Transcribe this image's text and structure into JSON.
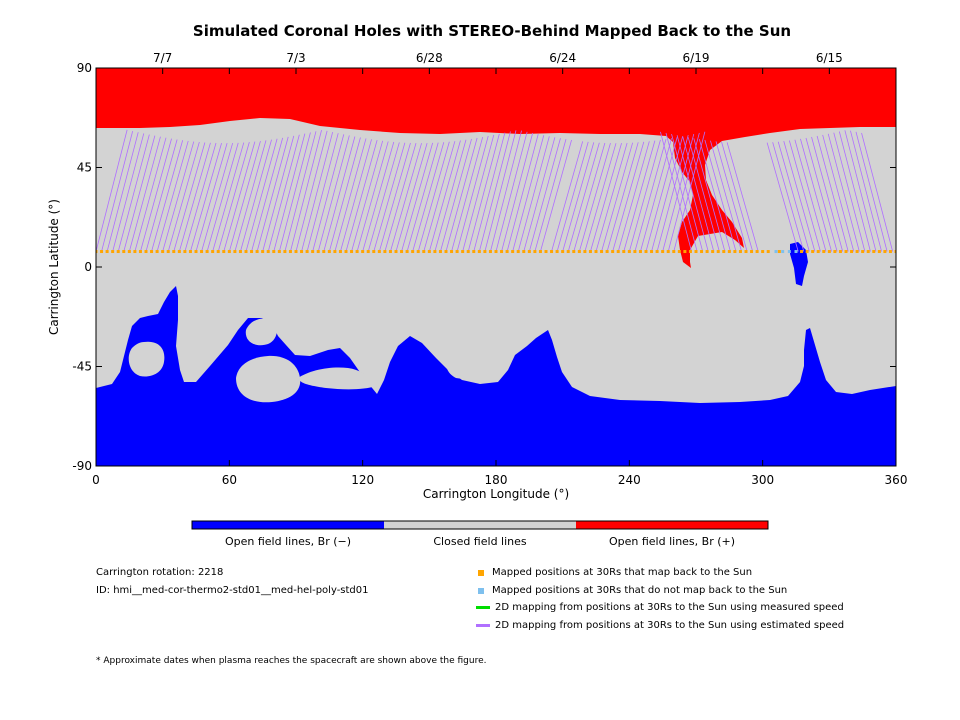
{
  "chart_data": {
    "type": "heatmap",
    "title": "Simulated Coronal Holes with STEREO-Behind Mapped Back to the Sun",
    "xlabel": "Carrington Longitude (°)",
    "ylabel": "Carrington Latitude (°)",
    "xlim": [
      0,
      360
    ],
    "ylim": [
      -90,
      90
    ],
    "x_ticks": [
      0,
      60,
      120,
      180,
      240,
      300,
      360
    ],
    "y_ticks": [
      90,
      45,
      0,
      -45,
      -90
    ],
    "top_axis": {
      "ticks": [
        {
          "lon": 30,
          "label": "7/7"
        },
        {
          "lon": 90,
          "label": "7/3"
        },
        {
          "lon": 150,
          "label": "6/28"
        },
        {
          "lon": 210,
          "label": "6/24"
        },
        {
          "lon": 270,
          "label": "6/19"
        },
        {
          "lon": 330,
          "label": "6/15"
        }
      ]
    },
    "mapped_latitude": 7,
    "mapped_points": {
      "back_to_sun": {
        "lon_start": 0,
        "lon_end": 360,
        "step": 2.5,
        "color": "#ffa500"
      },
      "not_back": [
        306,
        309,
        312,
        315
      ],
      "not_back_color": "#7ec0ee"
    },
    "fieldline_bundles": [
      {
        "foot_lon_start": 0,
        "foot_lon_end": 200,
        "dir": 1
      },
      {
        "foot_lon_start": 205,
        "foot_lon_end": 262,
        "dir": 1
      },
      {
        "foot_lon_start": 268,
        "foot_lon_end": 300,
        "dir": -1
      },
      {
        "foot_lon_start": 316,
        "foot_lon_end": 360,
        "dir": -1
      }
    ],
    "colorbar": {
      "categories": [
        {
          "label": "Open field lines, Br (−)",
          "color": "#0000ff"
        },
        {
          "label": "Closed field lines",
          "color": "#d3d3d3"
        },
        {
          "label": "Open field lines, Br (+)",
          "color": "#ff0000"
        }
      ]
    },
    "colors": {
      "closed": "#d3d3d3",
      "open_neg": "#0000ff",
      "open_pos": "#ff0000",
      "measured_speed": "#00dd00",
      "estimated_speed": "#b070ff"
    }
  },
  "info": {
    "rotation": "Carrington rotation: 2218",
    "id": "ID: hmi__med-cor-thermo2-std01__med-hel-poly-std01"
  },
  "legend": {
    "mapped_back": "Mapped positions at 30Rs that map back to the Sun",
    "not_mapped_back": "Mapped positions at 30Rs that do not map back to the Sun",
    "measured": "2D mapping from positions at 30Rs to the Sun using measured speed",
    "estimated": "2D mapping from positions at 30Rs to the Sun using estimated speed"
  },
  "footnote": "* Approximate dates when plasma reaches the spacecraft are shown above the figure."
}
